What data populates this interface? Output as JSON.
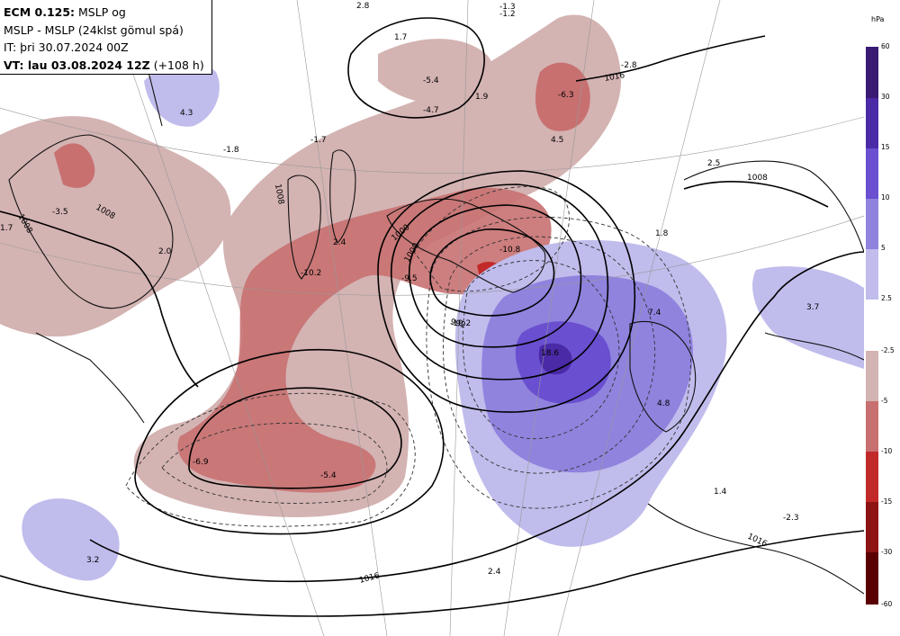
{
  "header": {
    "line1_bold": "ECM 0.125:",
    "line1_rest": " MSLP og",
    "line2": "MSLP - MSLP (24klst gömul spá)",
    "line3": "IT: þri 30.07.2024 00Z",
    "line4_bold": "VT: lau 03.08.2024 12Z",
    "line4_rest": " (+108 h)"
  },
  "legend": {
    "unit": "hPa",
    "positive": {
      "labels": [
        "60",
        "30",
        "15",
        "10",
        "5",
        "2.5"
      ],
      "colors": [
        "#3b1a73",
        "#4a2aa6",
        "#6a4fd0",
        "#8f83de",
        "#c0bcec"
      ]
    },
    "negative": {
      "labels": [
        "-2.5",
        "-5",
        "-10",
        "-15",
        "-30",
        "-60"
      ],
      "colors": [
        "#d4b3b3",
        "#c87070",
        "#c22a2a",
        "#8e1414",
        "#5a0000"
      ]
    }
  },
  "isobar_labels": [
    "1008",
    "1008",
    "1000",
    "1000",
    "992",
    "1016",
    "1016",
    "1016",
    "1008",
    "1008"
  ],
  "difference_labels": [
    "1.7",
    "-1.3",
    "-1.2",
    "-5.4",
    "-4.7",
    "-2.8",
    "-6.3",
    "4.5",
    "4.3",
    "-1.8",
    "-1.7",
    "-3.5",
    "1.7",
    "2.0",
    "2.4",
    "-10.2",
    "-9.5",
    "-10.8",
    "-19.2",
    "18.6",
    "7.4",
    "4.8",
    "1.8",
    "2.5",
    "3.7",
    "-6.9",
    "-5.4",
    "1.4",
    "-2.3",
    "3.2",
    "2.4",
    "1.9",
    "2.8"
  ],
  "colors": {
    "land": "#ffffff",
    "coast": "#111111",
    "grid": "#999999"
  }
}
